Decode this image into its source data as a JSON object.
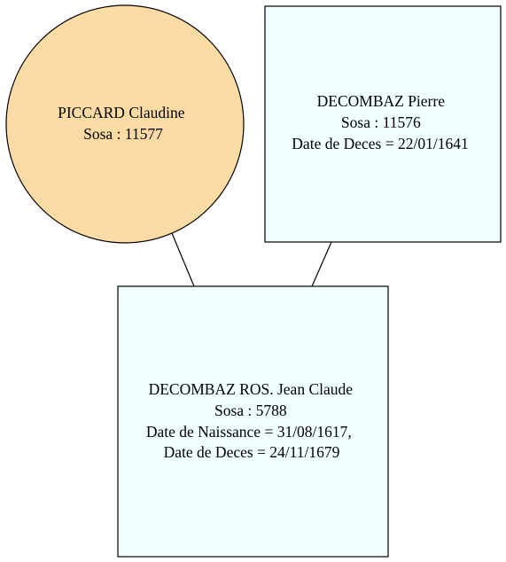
{
  "diagram": {
    "type": "family-tree",
    "colors": {
      "female_fill": "#FDDBA4",
      "male_fill": "#F0FFFF",
      "stroke": "#000000"
    },
    "nodes": [
      {
        "id": "piccard-claudine",
        "shape": "circle",
        "fill": "female_fill",
        "lines": [
          "PICCARD Claudine",
          "Sosa : 11577"
        ]
      },
      {
        "id": "decombaz-pierre",
        "shape": "box",
        "fill": "male_fill",
        "lines": [
          "DECOMBAZ Pierre",
          "Sosa : 11576",
          "Date de Deces = 22/01/1641"
        ]
      },
      {
        "id": "decombaz-jean-claude",
        "shape": "box",
        "fill": "male_fill",
        "lines": [
          "DECOMBAZ ROS. Jean Claude",
          "Sosa : 5788",
          "Date de Naissance = 31/08/1617,",
          "Date de Deces = 24/11/1679"
        ]
      }
    ],
    "edges": [
      {
        "from": "piccard-claudine",
        "to": "decombaz-jean-claude"
      },
      {
        "from": "decombaz-pierre",
        "to": "decombaz-jean-claude"
      }
    ]
  }
}
